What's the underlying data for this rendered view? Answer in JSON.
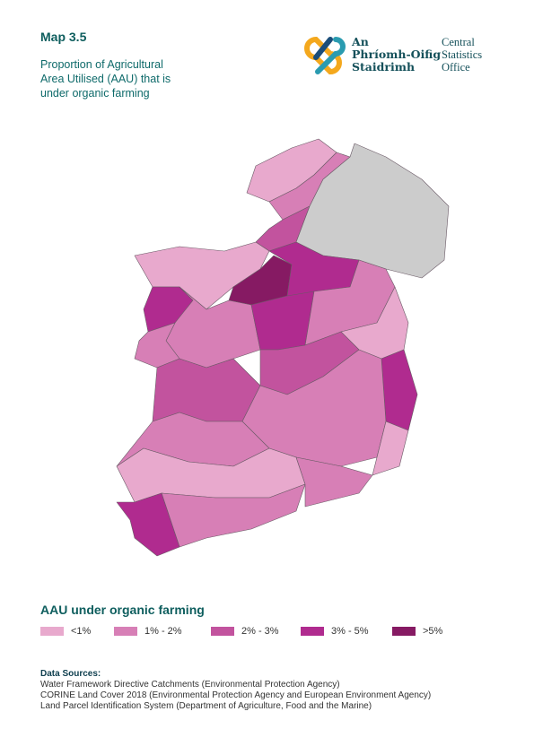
{
  "header": {
    "map_label": "Map 3.5",
    "title_lines": [
      "Proportion of Agricultural",
      "Area Utilised (AAU) that is",
      "under organic farming"
    ]
  },
  "logo": {
    "irish_lines": [
      "An",
      "Phríomh-Oifig",
      "Staidrimh"
    ],
    "english_lines": [
      "Central",
      "Statistics",
      "Office"
    ]
  },
  "legend": {
    "title": "AAU under organic farming",
    "items": [
      {
        "label": "<1%",
        "color": "#e8a9cd"
      },
      {
        "label": "1% - 2%",
        "color": "#d77fb6"
      },
      {
        "label": "2% - 3%",
        "color": "#c2539e"
      },
      {
        "label": "3% - 5%",
        "color": "#b02b8f"
      },
      {
        "label": ">5%",
        "color": "#861a63"
      }
    ]
  },
  "sources": {
    "heading": "Data Sources:",
    "lines": [
      "Water Framework Directive Catchments (Environmental Protection Agency)",
      "CORINE Land Cover 2018 (Environmental Protection Agency and European Environment Agency)",
      "Land Parcel Identification System (Department of Agriculture, Food and the Marine)"
    ]
  }
}
